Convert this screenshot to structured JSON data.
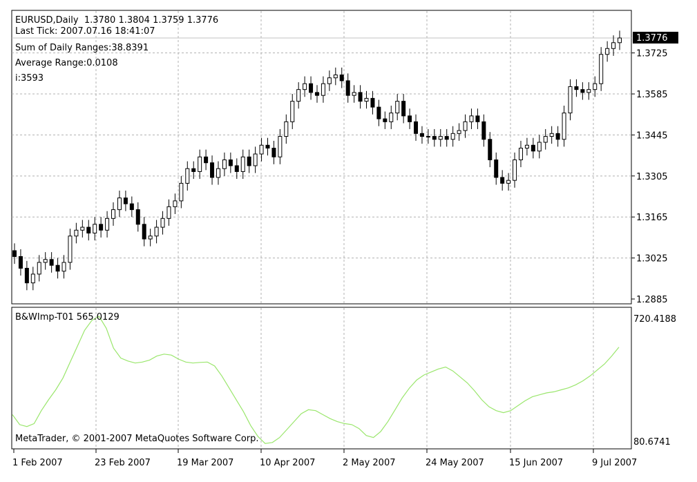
{
  "header": {
    "symbol_line": "EURUSD,Daily  1.3780 1.3804 1.3759 1.3776",
    "last_tick": "Last Tick: 2007.07.16 18:41:07",
    "sum_ranges": "Sum of Daily Ranges:38.8391",
    "avg_range": "Average Range:0.0108",
    "counter": "i:3593"
  },
  "indicator": {
    "label": "B&WImp-T01 565.0129",
    "copyright": "MetaTrader, © 2001-2007 MetaQuotes Software Corp.",
    "y_max_label": "720.4188",
    "y_min_label": "80.6741"
  },
  "chart_data": [
    {
      "type": "candlestick",
      "ylim": [
        1.2885,
        1.3805
      ],
      "ticks": [
        "1.3725",
        "1.3585",
        "1.3445",
        "1.3305",
        "1.3165",
        "1.3025",
        "1.2885"
      ],
      "current_price": "1.3776",
      "x_tick_labels": [
        "1 Feb 2007",
        "23 Feb 2007",
        "19 Mar 2007",
        "10 Apr 2007",
        "2 May 2007",
        "24 May 2007",
        "15 Jun 2007",
        "9 Jul 2007"
      ],
      "closes": [
        1.303,
        1.299,
        1.294,
        1.297,
        1.301,
        1.302,
        1.3,
        1.298,
        1.301,
        1.31,
        1.312,
        1.313,
        1.311,
        1.314,
        1.312,
        1.316,
        1.319,
        1.323,
        1.321,
        1.319,
        1.314,
        1.309,
        1.31,
        1.313,
        1.316,
        1.32,
        1.322,
        1.328,
        1.333,
        1.332,
        1.337,
        1.335,
        1.33,
        1.333,
        1.336,
        1.334,
        1.332,
        1.337,
        1.334,
        1.338,
        1.341,
        1.34,
        1.337,
        1.344,
        1.349,
        1.356,
        1.36,
        1.362,
        1.359,
        1.358,
        1.362,
        1.364,
        1.365,
        1.363,
        1.358,
        1.359,
        1.356,
        1.357,
        1.354,
        1.35,
        1.349,
        1.352,
        1.356,
        1.351,
        1.349,
        1.345,
        1.344,
        1.344,
        1.343,
        1.344,
        1.343,
        1.345,
        1.346,
        1.349,
        1.351,
        1.349,
        1.343,
        1.336,
        1.33,
        1.328,
        1.329,
        1.336,
        1.34,
        1.341,
        1.339,
        1.342,
        1.344,
        1.345,
        1.343,
        1.352,
        1.361,
        1.36,
        1.359,
        1.36,
        1.362,
        1.372,
        1.374,
        1.376,
        1.3776
      ]
    },
    {
      "type": "line",
      "ylim": [
        80.6741,
        720.4188
      ],
      "values": [
        225,
        175,
        165,
        180,
        245,
        300,
        350,
        410,
        490,
        570,
        650,
        700,
        720,
        660,
        560,
        510,
        495,
        485,
        490,
        500,
        520,
        530,
        525,
        505,
        490,
        485,
        488,
        490,
        470,
        420,
        360,
        300,
        240,
        170,
        115,
        80,
        85,
        110,
        150,
        190,
        230,
        250,
        245,
        225,
        205,
        190,
        180,
        175,
        155,
        120,
        110,
        140,
        190,
        250,
        310,
        360,
        400,
        425,
        440,
        455,
        465,
        445,
        415,
        385,
        345,
        300,
        265,
        245,
        235,
        245,
        270,
        295,
        315,
        325,
        335,
        340,
        350,
        360,
        375,
        395,
        420,
        450,
        480,
        520,
        565
      ]
    }
  ]
}
